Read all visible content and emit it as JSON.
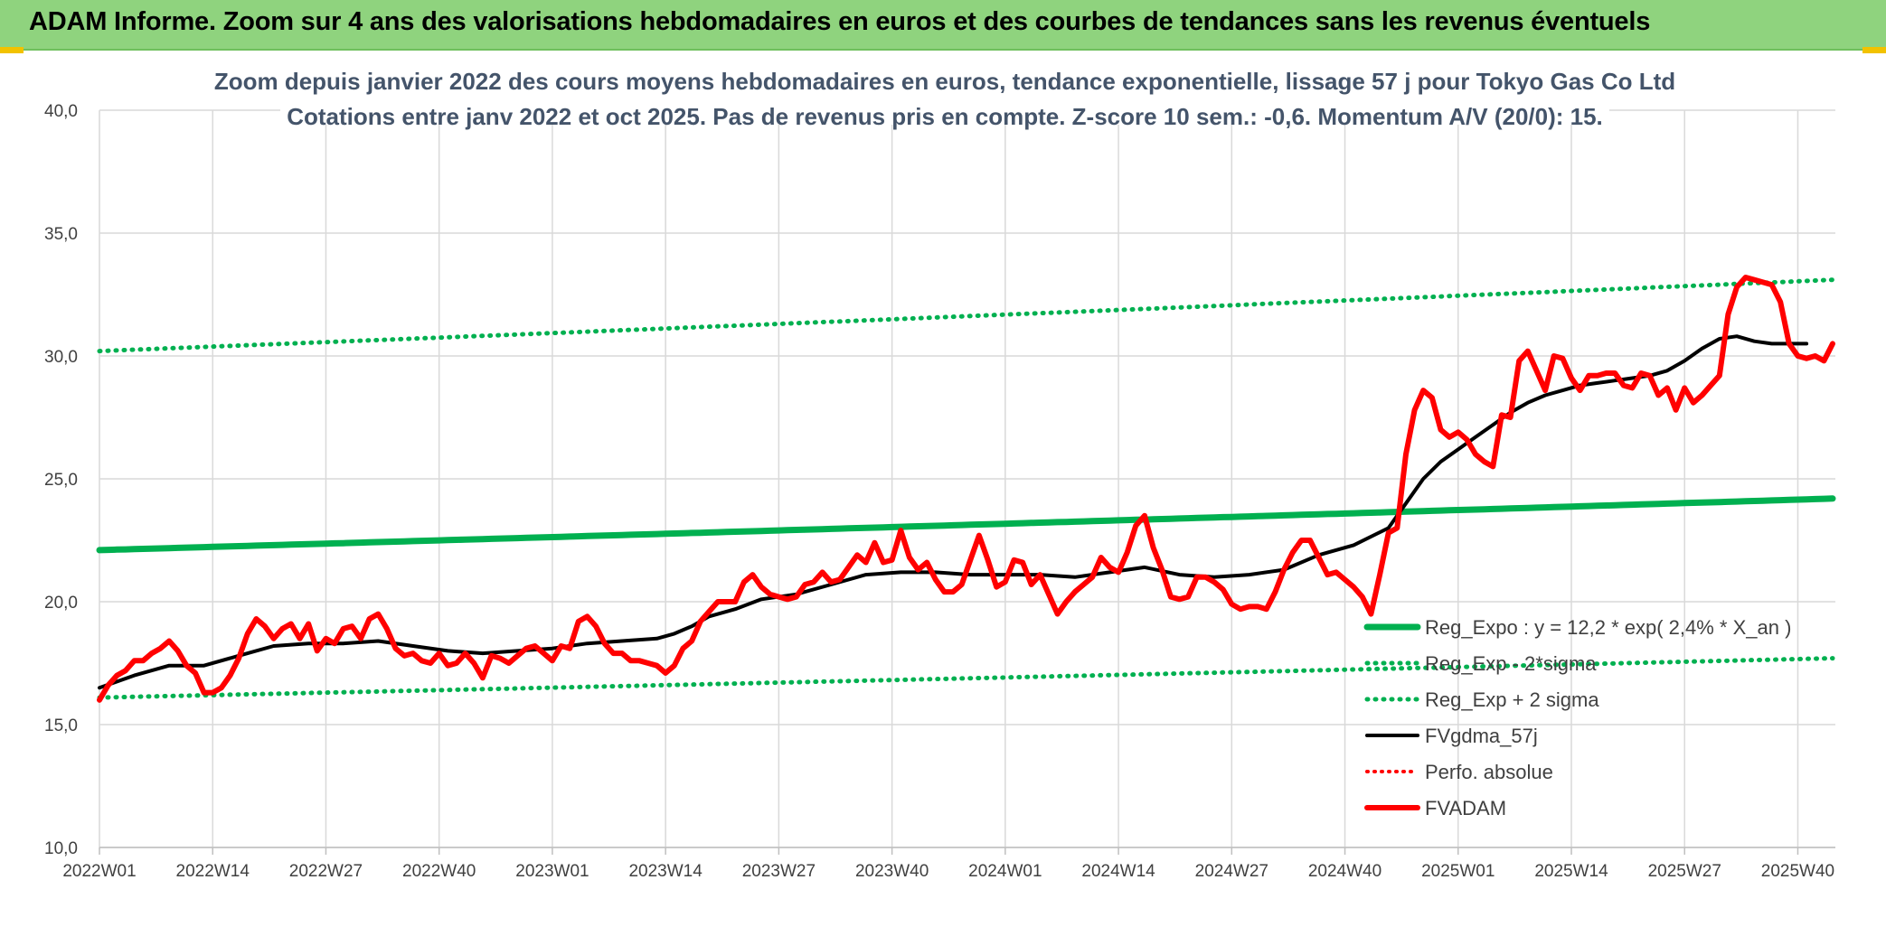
{
  "banner": {
    "title": "ADAM Informe. Zoom sur 4 ans des valorisations hebdomadaires en euros et des courbes de tendances sans les revenus éventuels"
  },
  "colors": {
    "banner_bg": "#8fd37e",
    "reg_expo": "#00b050",
    "bands": "#00b050",
    "fvgdma": "#000000",
    "perfo": "#ff0000",
    "fvadam": "#ff0000",
    "title_text": "#44546a"
  },
  "chart_data": {
    "type": "line",
    "title": [
      "Zoom depuis janvier 2022 des cours moyens hebdomadaires en euros, tendance exponentielle, lissage 57 j pour Tokyo Gas Co Ltd",
      "Cotations entre janv 2022 et oct 2025. Pas de revenus pris en compte. Z-score 10 sem.: -0,6. Momentum A/V (20/0): 15."
    ],
    "xlabel": "",
    "ylabel": "",
    "ylim": [
      10,
      40
    ],
    "y_ticks": [
      "10,0",
      "15,0",
      "20,0",
      "25,0",
      "30,0",
      "35,0",
      "40,0"
    ],
    "y_tick_values": [
      10,
      15,
      20,
      25,
      30,
      35,
      40
    ],
    "x_ticks": [
      "2022W01",
      "2022W14",
      "2022W27",
      "2022W40",
      "2023W01",
      "2023W14",
      "2023W27",
      "2023W40",
      "2024W01",
      "2024W14",
      "2024W27",
      "2024W40",
      "2025W01",
      "2025W14",
      "2025W27",
      "2025W40"
    ],
    "x_tick_weeks": [
      0,
      13,
      26,
      39,
      52,
      65,
      78,
      91,
      104,
      117,
      130,
      143,
      156,
      169,
      182,
      195
    ],
    "x_unit": "weeks since 2022W01",
    "legend_position": "right",
    "grid": true,
    "series": [
      {
        "name": "Reg_Expo : y = 12,2 * exp( 2,4% * X_an )",
        "style": "solid-thick",
        "start": [
          0,
          22.1
        ],
        "end": [
          199,
          24.2
        ]
      },
      {
        "name": "Reg_Exp - 2*sigma",
        "style": "dotted",
        "start": [
          0,
          16.1
        ],
        "end": [
          199,
          17.7
        ]
      },
      {
        "name": "Reg_Exp + 2 sigma",
        "style": "dotted",
        "start": [
          0,
          30.2
        ],
        "end": [
          199,
          33.1
        ]
      },
      {
        "name": "FVgdma_57j",
        "style": "solid",
        "points": [
          [
            0,
            16.5
          ],
          [
            4,
            17.0
          ],
          [
            8,
            17.4
          ],
          [
            12,
            17.4
          ],
          [
            16,
            17.8
          ],
          [
            20,
            18.2
          ],
          [
            24,
            18.3
          ],
          [
            28,
            18.3
          ],
          [
            32,
            18.4
          ],
          [
            36,
            18.2
          ],
          [
            40,
            18.0
          ],
          [
            44,
            17.9
          ],
          [
            48,
            18.0
          ],
          [
            52,
            18.1
          ],
          [
            56,
            18.3
          ],
          [
            60,
            18.4
          ],
          [
            64,
            18.5
          ],
          [
            66,
            18.7
          ],
          [
            68,
            19.0
          ],
          [
            70,
            19.4
          ],
          [
            73,
            19.7
          ],
          [
            76,
            20.1
          ],
          [
            80,
            20.3
          ],
          [
            84,
            20.7
          ],
          [
            88,
            21.1
          ],
          [
            92,
            21.2
          ],
          [
            96,
            21.2
          ],
          [
            100,
            21.1
          ],
          [
            104,
            21.1
          ],
          [
            108,
            21.1
          ],
          [
            112,
            21.0
          ],
          [
            116,
            21.2
          ],
          [
            120,
            21.4
          ],
          [
            124,
            21.1
          ],
          [
            128,
            21.0
          ],
          [
            132,
            21.1
          ],
          [
            136,
            21.3
          ],
          [
            140,
            21.9
          ],
          [
            144,
            22.3
          ],
          [
            148,
            23.0
          ],
          [
            150,
            24.0
          ],
          [
            152,
            25.0
          ],
          [
            154,
            25.7
          ],
          [
            156,
            26.2
          ],
          [
            158,
            26.7
          ],
          [
            160,
            27.2
          ],
          [
            162,
            27.7
          ],
          [
            164,
            28.1
          ],
          [
            166,
            28.4
          ],
          [
            168,
            28.6
          ],
          [
            170,
            28.8
          ],
          [
            172,
            28.9
          ],
          [
            174,
            29.0
          ],
          [
            176,
            29.1
          ],
          [
            178,
            29.2
          ],
          [
            180,
            29.4
          ],
          [
            182,
            29.8
          ],
          [
            184,
            30.3
          ],
          [
            186,
            30.7
          ],
          [
            188,
            30.8
          ],
          [
            190,
            30.6
          ],
          [
            192,
            30.5
          ],
          [
            194,
            30.5
          ],
          [
            196,
            30.5
          ]
        ]
      },
      {
        "name": "Perfo. absolue",
        "style": "dotted",
        "points": []
      },
      {
        "name": "FVADAM",
        "style": "solid-thick",
        "points": [
          [
            0,
            16.0
          ],
          [
            1,
            16.6
          ],
          [
            2,
            17.0
          ],
          [
            3,
            17.2
          ],
          [
            4,
            17.6
          ],
          [
            5,
            17.6
          ],
          [
            6,
            17.9
          ],
          [
            7,
            18.1
          ],
          [
            8,
            18.4
          ],
          [
            9,
            18.0
          ],
          [
            10,
            17.4
          ],
          [
            11,
            17.1
          ],
          [
            12,
            16.3
          ],
          [
            13,
            16.3
          ],
          [
            14,
            16.5
          ],
          [
            15,
            17.0
          ],
          [
            16,
            17.7
          ],
          [
            17,
            18.7
          ],
          [
            18,
            19.3
          ],
          [
            19,
            19.0
          ],
          [
            20,
            18.5
          ],
          [
            21,
            18.9
          ],
          [
            22,
            19.1
          ],
          [
            23,
            18.5
          ],
          [
            24,
            19.1
          ],
          [
            25,
            18.0
          ],
          [
            26,
            18.5
          ],
          [
            27,
            18.3
          ],
          [
            28,
            18.9
          ],
          [
            29,
            19.0
          ],
          [
            30,
            18.5
          ],
          [
            31,
            19.3
          ],
          [
            32,
            19.5
          ],
          [
            33,
            18.9
          ],
          [
            34,
            18.1
          ],
          [
            35,
            17.8
          ],
          [
            36,
            17.9
          ],
          [
            37,
            17.6
          ],
          [
            38,
            17.5
          ],
          [
            39,
            17.9
          ],
          [
            40,
            17.4
          ],
          [
            41,
            17.5
          ],
          [
            42,
            17.9
          ],
          [
            43,
            17.5
          ],
          [
            44,
            16.9
          ],
          [
            45,
            17.8
          ],
          [
            46,
            17.7
          ],
          [
            47,
            17.5
          ],
          [
            48,
            17.8
          ],
          [
            49,
            18.1
          ],
          [
            50,
            18.2
          ],
          [
            51,
            17.9
          ],
          [
            52,
            17.6
          ],
          [
            53,
            18.2
          ],
          [
            54,
            18.1
          ],
          [
            55,
            19.2
          ],
          [
            56,
            19.4
          ],
          [
            57,
            19.0
          ],
          [
            58,
            18.3
          ],
          [
            59,
            17.9
          ],
          [
            60,
            17.9
          ],
          [
            61,
            17.6
          ],
          [
            62,
            17.6
          ],
          [
            63,
            17.5
          ],
          [
            64,
            17.4
          ],
          [
            65,
            17.1
          ],
          [
            66,
            17.4
          ],
          [
            67,
            18.1
          ],
          [
            68,
            18.4
          ],
          [
            69,
            19.2
          ],
          [
            70,
            19.6
          ],
          [
            71,
            20.0
          ],
          [
            72,
            20.0
          ],
          [
            73,
            20.0
          ],
          [
            74,
            20.8
          ],
          [
            75,
            21.1
          ],
          [
            76,
            20.6
          ],
          [
            77,
            20.3
          ],
          [
            78,
            20.2
          ],
          [
            79,
            20.1
          ],
          [
            80,
            20.2
          ],
          [
            81,
            20.7
          ],
          [
            82,
            20.8
          ],
          [
            83,
            21.2
          ],
          [
            84,
            20.8
          ],
          [
            85,
            20.9
          ],
          [
            86,
            21.4
          ],
          [
            87,
            21.9
          ],
          [
            88,
            21.6
          ],
          [
            89,
            22.4
          ],
          [
            90,
            21.6
          ],
          [
            91,
            21.7
          ],
          [
            92,
            22.9
          ],
          [
            93,
            21.8
          ],
          [
            94,
            21.3
          ],
          [
            95,
            21.6
          ],
          [
            96,
            20.9
          ],
          [
            97,
            20.4
          ],
          [
            98,
            20.4
          ],
          [
            99,
            20.7
          ],
          [
            100,
            21.7
          ],
          [
            101,
            22.7
          ],
          [
            102,
            21.7
          ],
          [
            103,
            20.6
          ],
          [
            104,
            20.8
          ],
          [
            105,
            21.7
          ],
          [
            106,
            21.6
          ],
          [
            107,
            20.7
          ],
          [
            108,
            21.1
          ],
          [
            109,
            20.3
          ],
          [
            110,
            19.5
          ],
          [
            111,
            20.0
          ],
          [
            112,
            20.4
          ],
          [
            113,
            20.7
          ],
          [
            114,
            21.0
          ],
          [
            115,
            21.8
          ],
          [
            116,
            21.4
          ],
          [
            117,
            21.2
          ],
          [
            118,
            22.0
          ],
          [
            119,
            23.1
          ],
          [
            120,
            23.5
          ],
          [
            121,
            22.2
          ],
          [
            122,
            21.3
          ],
          [
            123,
            20.2
          ],
          [
            124,
            20.1
          ],
          [
            125,
            20.2
          ],
          [
            126,
            21.0
          ],
          [
            127,
            21.0
          ],
          [
            128,
            20.8
          ],
          [
            129,
            20.5
          ],
          [
            130,
            19.9
          ],
          [
            131,
            19.7
          ],
          [
            132,
            19.8
          ],
          [
            133,
            19.8
          ],
          [
            134,
            19.7
          ],
          [
            135,
            20.4
          ],
          [
            136,
            21.3
          ],
          [
            137,
            22.0
          ],
          [
            138,
            22.5
          ],
          [
            139,
            22.5
          ],
          [
            140,
            21.8
          ],
          [
            141,
            21.1
          ],
          [
            142,
            21.2
          ],
          [
            143,
            20.9
          ],
          [
            144,
            20.6
          ],
          [
            145,
            20.2
          ],
          [
            146,
            19.5
          ],
          [
            147,
            21.1
          ],
          [
            148,
            22.8
          ],
          [
            149,
            23.0
          ],
          [
            150,
            26.0
          ],
          [
            151,
            27.8
          ],
          [
            152,
            28.6
          ],
          [
            153,
            28.3
          ],
          [
            154,
            27.0
          ],
          [
            155,
            26.7
          ],
          [
            156,
            26.9
          ],
          [
            157,
            26.6
          ],
          [
            158,
            26.0
          ],
          [
            159,
            25.7
          ],
          [
            160,
            25.5
          ],
          [
            161,
            27.6
          ],
          [
            162,
            27.5
          ],
          [
            163,
            29.8
          ],
          [
            164,
            30.2
          ],
          [
            165,
            29.4
          ],
          [
            166,
            28.6
          ],
          [
            167,
            30.0
          ],
          [
            168,
            29.9
          ],
          [
            169,
            29.1
          ],
          [
            170,
            28.6
          ],
          [
            171,
            29.2
          ],
          [
            172,
            29.2
          ],
          [
            173,
            29.3
          ],
          [
            174,
            29.3
          ],
          [
            175,
            28.8
          ],
          [
            176,
            28.7
          ],
          [
            177,
            29.3
          ],
          [
            178,
            29.2
          ],
          [
            179,
            28.4
          ],
          [
            180,
            28.7
          ],
          [
            181,
            27.8
          ],
          [
            182,
            28.7
          ],
          [
            183,
            28.1
          ],
          [
            184,
            28.4
          ],
          [
            185,
            28.8
          ],
          [
            186,
            29.2
          ],
          [
            187,
            31.7
          ],
          [
            188,
            32.8
          ],
          [
            189,
            33.2
          ],
          [
            190,
            33.1
          ],
          [
            191,
            33.0
          ],
          [
            192,
            32.9
          ],
          [
            193,
            32.2
          ],
          [
            194,
            30.5
          ],
          [
            195,
            30.0
          ],
          [
            196,
            29.9
          ],
          [
            197,
            30.0
          ],
          [
            198,
            29.8
          ],
          [
            199,
            30.5
          ]
        ]
      }
    ]
  }
}
